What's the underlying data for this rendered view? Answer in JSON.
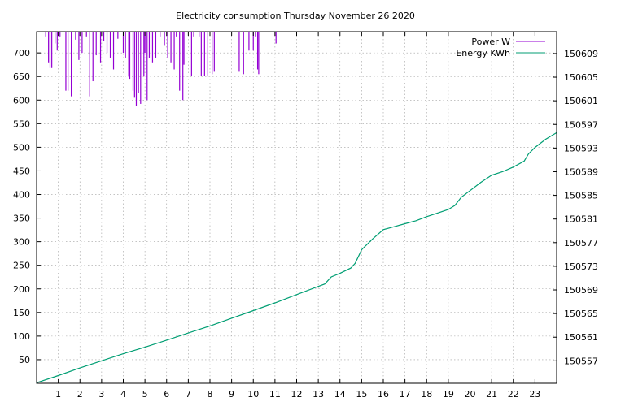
{
  "chart_data": {
    "type": "line",
    "title": "Electricity consumption Thursday November 26 2020",
    "x_ticks": [
      1,
      2,
      3,
      4,
      5,
      6,
      7,
      8,
      9,
      10,
      11,
      12,
      13,
      14,
      15,
      16,
      17,
      18,
      19,
      20,
      21,
      22,
      23
    ],
    "x_range": [
      0,
      24
    ],
    "y_left_ticks": [
      50,
      100,
      150,
      200,
      250,
      300,
      350,
      400,
      450,
      500,
      550,
      600,
      650,
      700
    ],
    "y_left_range": [
      0,
      745
    ],
    "y_right_ticks": [
      150557,
      150561,
      150565,
      150569,
      150573,
      150577,
      150581,
      150585,
      150589,
      150593,
      150597,
      150601,
      150605,
      150609
    ],
    "y_right_range": [
      150553.2,
      150612.7
    ],
    "grid": true,
    "legend_position": "top-right",
    "series": [
      {
        "name": "Power W",
        "axis": "left",
        "color": "#9400d3",
        "style": "impulses-from-top",
        "x": [
          0.42,
          0.55,
          0.62,
          0.7,
          0.85,
          0.95,
          1.08,
          1.35,
          1.45,
          1.6,
          1.8,
          1.95,
          2.1,
          2.3,
          2.45,
          2.6,
          2.75,
          2.95,
          3.1,
          3.25,
          3.4,
          3.55,
          3.75,
          4.0,
          4.1,
          4.25,
          4.3,
          4.45,
          4.52,
          4.6,
          4.7,
          4.8,
          4.95,
          5.0,
          5.1,
          5.2,
          5.35,
          5.5,
          5.7,
          5.9,
          6.05,
          6.2,
          6.35,
          6.45,
          6.6,
          6.75,
          6.8,
          7.15,
          7.25,
          7.5,
          7.6,
          7.75,
          7.9,
          8.1,
          8.2,
          9.35,
          9.55,
          9.8,
          10.0,
          10.1,
          10.2,
          10.25,
          11.05
        ],
        "values": [
          735,
          680,
          668,
          668,
          720,
          705,
          735,
          620,
          620,
          608,
          728,
          685,
          700,
          735,
          608,
          640,
          695,
          680,
          725,
          700,
          690,
          665,
          730,
          700,
          690,
          650,
          645,
          620,
          605,
          588,
          615,
          592,
          650,
          700,
          600,
          690,
          680,
          690,
          735,
          715,
          690,
          680,
          665,
          735,
          620,
          600,
          675,
          652,
          735,
          735,
          652,
          652,
          650,
          655,
          660,
          660,
          655,
          705,
          705,
          735,
          665,
          655,
          720
        ]
      },
      {
        "name": "Energy KWh",
        "axis": "right",
        "color": "#009e73",
        "style": "line",
        "x": [
          0,
          1,
          2,
          3,
          4,
          5,
          6,
          7,
          8,
          9,
          10,
          11,
          12,
          13,
          13.3,
          13.6,
          14.0,
          14.5,
          14.7,
          15.0,
          15.5,
          16.0,
          16.5,
          17.0,
          17.5,
          18.0,
          18.5,
          19.0,
          19.3,
          19.6,
          20.0,
          20.5,
          21.0,
          21.5,
          22.0,
          22.5,
          22.7,
          23.0,
          23.5,
          24.0
        ],
        "values": [
          150553.3,
          150554.5,
          150555.8,
          150557.0,
          150558.2,
          150559.3,
          150560.5,
          150561.7,
          150562.9,
          150564.2,
          150565.5,
          150566.8,
          150568.2,
          150569.6,
          150570.0,
          150571.2,
          150571.8,
          150572.7,
          150573.5,
          150575.8,
          150577.6,
          150579.2,
          150579.7,
          150580.2,
          150580.7,
          150581.4,
          150582.0,
          150582.6,
          150583.3,
          150584.7,
          150585.8,
          150587.2,
          150588.4,
          150589.0,
          150589.8,
          150590.8,
          150592.0,
          150593.1,
          150594.5,
          150595.6
        ]
      }
    ]
  }
}
